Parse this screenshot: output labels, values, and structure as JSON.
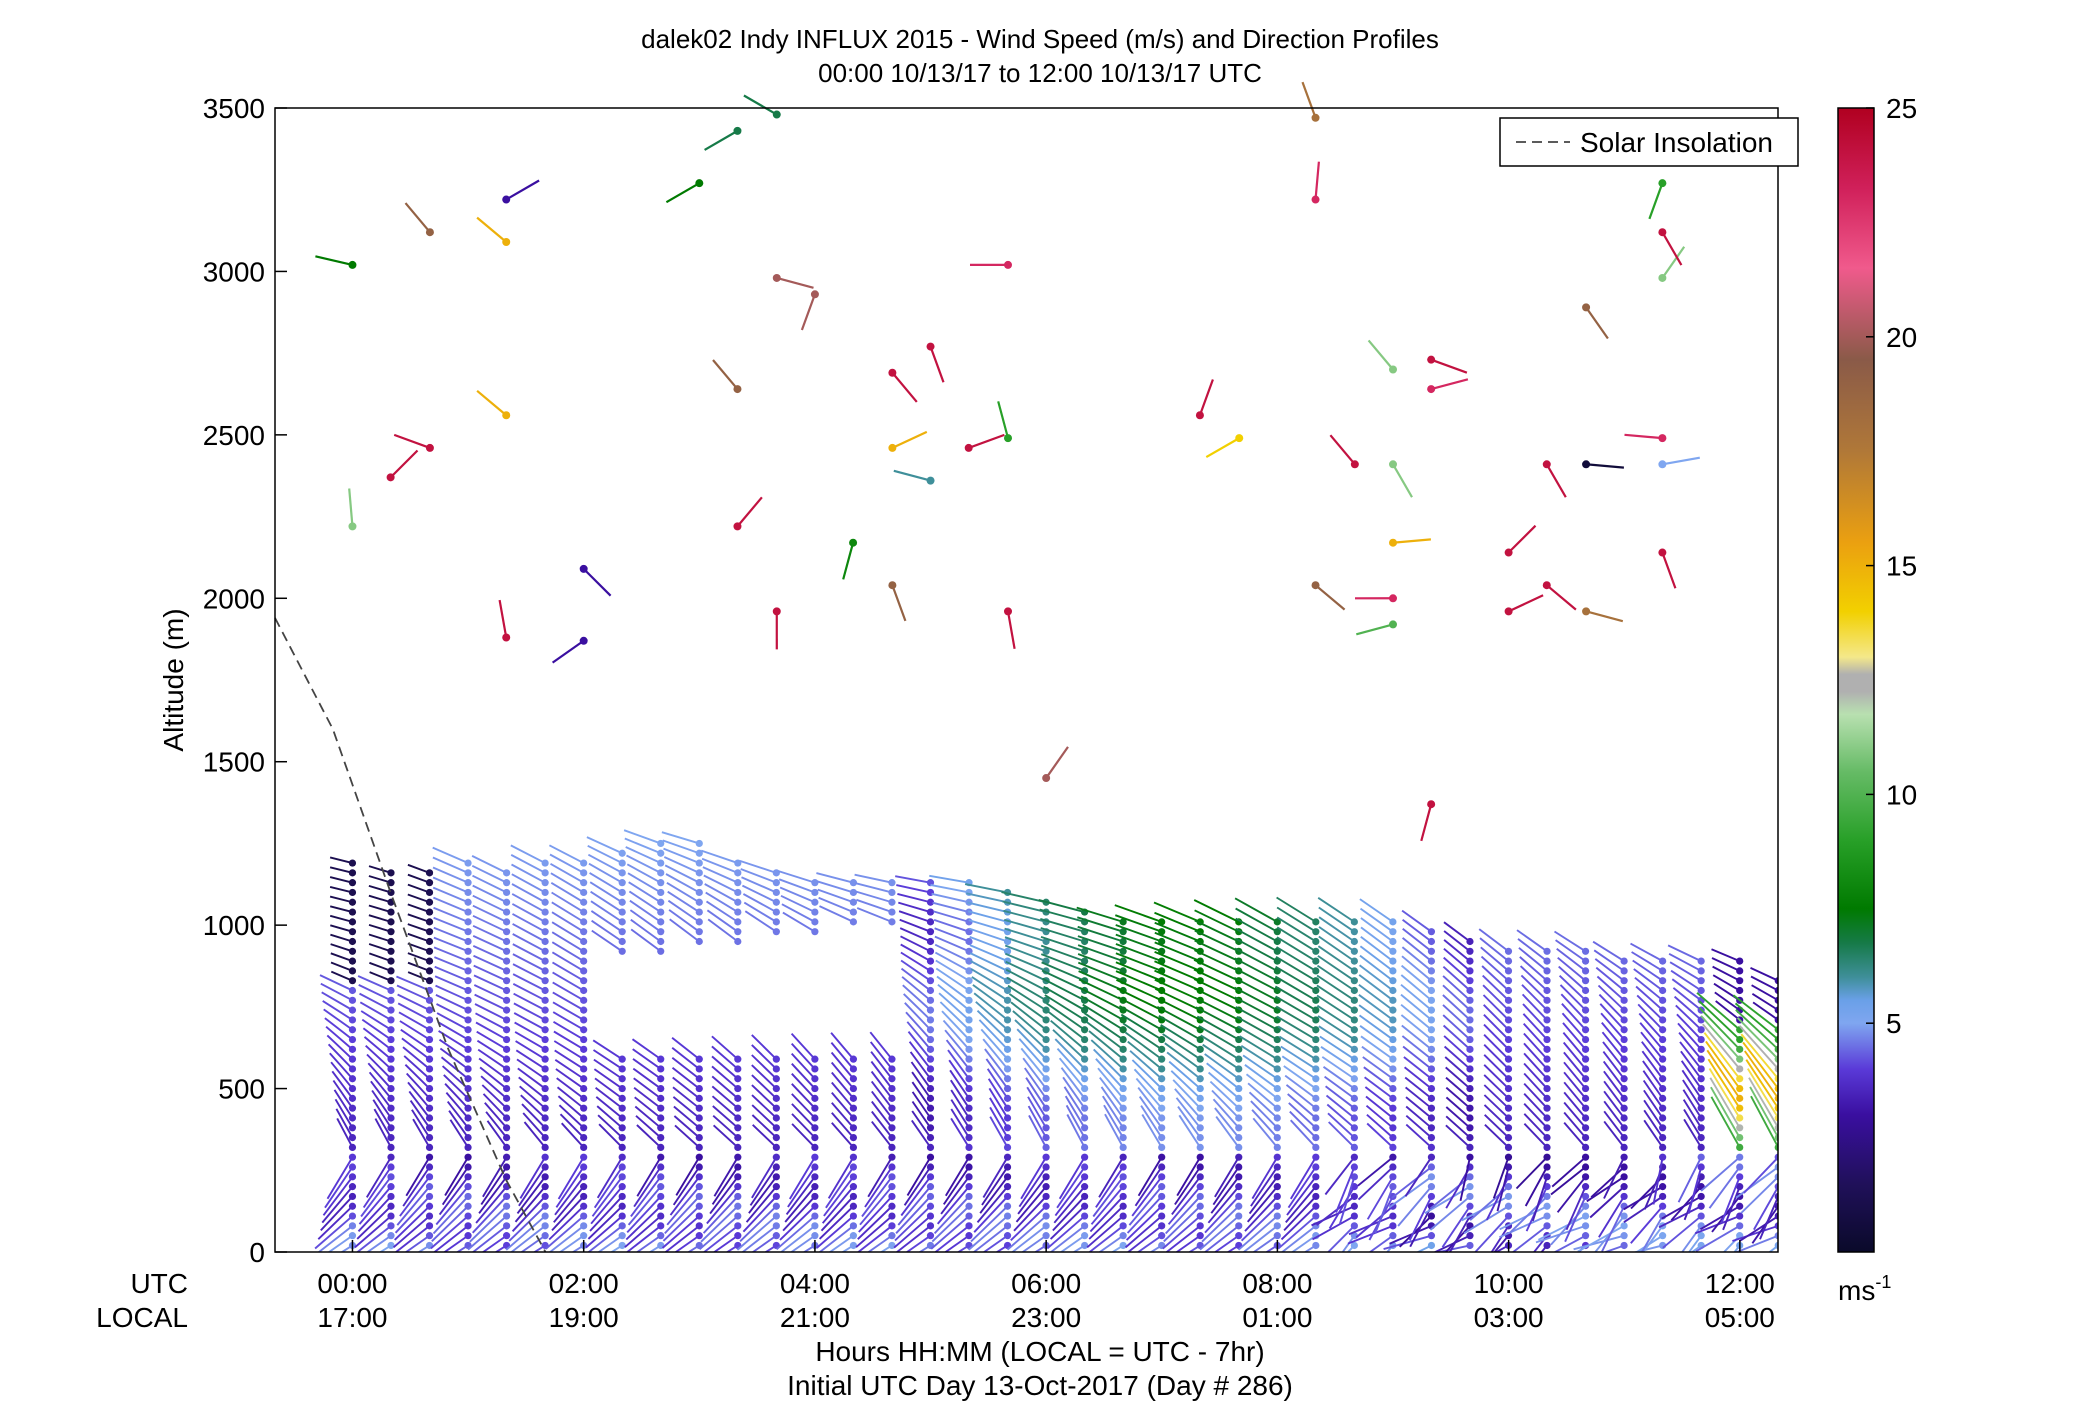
{
  "chart_data": {
    "type": "scatter",
    "title": "dalek02 Indy INFLUX 2015 - Wind Speed (m/s) and Direction Profiles",
    "subtitle": "00:00 10/13/17 to 12:00 10/13/17  UTC",
    "ylabel": "Altitude (m)",
    "xlabel": "Hours HH:MM  (LOCAL = UTC - 7hr)",
    "xlabel2": "Initial UTC Day 13-Oct-2017 (Day # 286)",
    "utc_label": "UTC",
    "local_label": "LOCAL",
    "xlim": [
      -0.67,
      12.33
    ],
    "ylim": [
      0,
      3500
    ],
    "x_ticks": [
      {
        "x": 0,
        "utc": "00:00",
        "local": "17:00"
      },
      {
        "x": 2,
        "utc": "02:00",
        "local": "19:00"
      },
      {
        "x": 4,
        "utc": "04:00",
        "local": "21:00"
      },
      {
        "x": 6,
        "utc": "06:00",
        "local": "23:00"
      },
      {
        "x": 8,
        "utc": "08:00",
        "local": "01:00"
      },
      {
        "x": 10,
        "utc": "10:00",
        "local": "03:00"
      },
      {
        "x": 12,
        "utc": "12:00",
        "local": "05:00"
      }
    ],
    "y_ticks": [
      {
        "value": 0,
        "label": "0"
      },
      {
        "value": 500,
        "label": "500"
      },
      {
        "value": 1000,
        "label": "1000"
      },
      {
        "value": 1500,
        "label": "1500"
      },
      {
        "value": 2000,
        "label": "2000"
      },
      {
        "value": 2500,
        "label": "2500"
      },
      {
        "value": 3000,
        "label": "3000"
      },
      {
        "value": 3500,
        "label": "3500"
      }
    ],
    "legend": {
      "label": "Solar Insolation",
      "position": "top-right"
    },
    "solar_insolation": {
      "x": [
        -0.67,
        -0.17,
        0.33,
        0.83,
        1.33,
        1.67
      ],
      "y": [
        1940,
        1600,
        1100,
        620,
        220,
        0
      ]
    },
    "colorbar": {
      "min": 0,
      "max": 25,
      "ticks": [
        {
          "value": 5,
          "label": "5"
        },
        {
          "value": 10,
          "label": "10"
        },
        {
          "value": 15,
          "label": "15"
        },
        {
          "value": 20,
          "label": "20"
        },
        {
          "value": 25,
          "label": "25"
        }
      ],
      "unit": "ms",
      "unit_exp": "-1"
    },
    "profile_top_heights": [
      1210,
      1170,
      1160,
      1210,
      1180,
      1210,
      1210,
      1220,
      1250,
      1250,
      1200,
      1170,
      1150,
      1150,
      1140,
      1130,
      1130,
      1110,
      1090,
      1050,
      1030,
      1010,
      1010,
      1010,
      1010,
      1010,
      1010,
      1010,
      980,
      950,
      940,
      940,
      920,
      910,
      910,
      910,
      910,
      830
    ],
    "profile_interval_hours": 0.3333,
    "profile_vertical_spacing_m": 30,
    "sample_vectors": [
      {
        "x": 0.0,
        "y": 3020,
        "dir": 283,
        "speed": 7.5
      },
      {
        "x": 0.33,
        "y": 2370,
        "dir": 45,
        "speed": 24
      },
      {
        "x": 0.0,
        "y": 2220,
        "dir": 355,
        "speed": 11
      },
      {
        "x": 0.67,
        "y": 2460,
        "dir": 290,
        "speed": 24
      },
      {
        "x": 0.67,
        "y": 3120,
        "dir": 320,
        "speed": 19
      },
      {
        "x": 1.33,
        "y": 3220,
        "dir": 60,
        "speed": 3
      },
      {
        "x": 1.33,
        "y": 3090,
        "dir": 310,
        "speed": 15
      },
      {
        "x": 1.33,
        "y": 2560,
        "dir": 310,
        "speed": 15
      },
      {
        "x": 1.33,
        "y": 1880,
        "dir": 350,
        "speed": 24
      },
      {
        "x": 2.0,
        "y": 2090,
        "dir": 135,
        "speed": 3
      },
      {
        "x": 2.0,
        "y": 1870,
        "dir": 235,
        "speed": 3
      },
      {
        "x": 3.0,
        "y": 3270,
        "dir": 240,
        "speed": 7.5
      },
      {
        "x": 3.33,
        "y": 3430,
        "dir": 240,
        "speed": 7
      },
      {
        "x": 3.67,
        "y": 3480,
        "dir": 300,
        "speed": 7
      },
      {
        "x": 3.67,
        "y": 2980,
        "dir": 105,
        "speed": 20
      },
      {
        "x": 4.0,
        "y": 2930,
        "dir": 200,
        "speed": 20
      },
      {
        "x": 3.33,
        "y": 2640,
        "dir": 320,
        "speed": 19
      },
      {
        "x": 3.33,
        "y": 2220,
        "dir": 40,
        "speed": 24
      },
      {
        "x": 3.67,
        "y": 1960,
        "dir": 180,
        "speed": 24
      },
      {
        "x": 4.33,
        "y": 2170,
        "dir": 195,
        "speed": 8
      },
      {
        "x": 4.67,
        "y": 2690,
        "dir": 140,
        "speed": 24
      },
      {
        "x": 4.67,
        "y": 2460,
        "dir": 65,
        "speed": 15
      },
      {
        "x": 5.0,
        "y": 2770,
        "dir": 160,
        "speed": 24
      },
      {
        "x": 4.67,
        "y": 2040,
        "dir": 160,
        "speed": 19
      },
      {
        "x": 5.33,
        "y": 2460,
        "dir": 70,
        "speed": 24
      },
      {
        "x": 5.67,
        "y": 2490,
        "dir": 345,
        "speed": 9
      },
      {
        "x": 5.67,
        "y": 3020,
        "dir": 270,
        "speed": 23
      },
      {
        "x": 5.0,
        "y": 2360,
        "dir": 285,
        "speed": 6
      },
      {
        "x": 5.67,
        "y": 1960,
        "dir": 170,
        "speed": 24
      },
      {
        "x": 6.0,
        "y": 1450,
        "dir": 35,
        "speed": 20
      },
      {
        "x": 7.33,
        "y": 2560,
        "dir": 20,
        "speed": 24
      },
      {
        "x": 7.67,
        "y": 2490,
        "dir": 240,
        "speed": 14
      },
      {
        "x": 8.33,
        "y": 3470,
        "dir": 340,
        "speed": 18
      },
      {
        "x": 8.33,
        "y": 3220,
        "dir": 5,
        "speed": 23
      },
      {
        "x": 8.67,
        "y": 2410,
        "dir": 320,
        "speed": 24
      },
      {
        "x": 8.33,
        "y": 2040,
        "dir": 130,
        "speed": 19
      },
      {
        "x": 9.0,
        "y": 2700,
        "dir": 320,
        "speed": 11
      },
      {
        "x": 9.0,
        "y": 2410,
        "dir": 150,
        "speed": 11
      },
      {
        "x": 9.0,
        "y": 2170,
        "dir": 85,
        "speed": 15
      },
      {
        "x": 9.0,
        "y": 2000,
        "dir": 270,
        "speed": 23
      },
      {
        "x": 9.0,
        "y": 1920,
        "dir": 255,
        "speed": 10
      },
      {
        "x": 9.33,
        "y": 2730,
        "dir": 110,
        "speed": 24
      },
      {
        "x": 9.33,
        "y": 2640,
        "dir": 75,
        "speed": 23
      },
      {
        "x": 9.33,
        "y": 1370,
        "dir": 195,
        "speed": 24
      },
      {
        "x": 10.0,
        "y": 2140,
        "dir": 45,
        "speed": 24
      },
      {
        "x": 10.0,
        "y": 1960,
        "dir": 65,
        "speed": 24
      },
      {
        "x": 10.33,
        "y": 2410,
        "dir": 150,
        "speed": 24
      },
      {
        "x": 10.33,
        "y": 2040,
        "dir": 130,
        "speed": 24
      },
      {
        "x": 10.67,
        "y": 2410,
        "dir": 95,
        "speed": 0.5
      },
      {
        "x": 10.67,
        "y": 1960,
        "dir": 105,
        "speed": 18
      },
      {
        "x": 10.67,
        "y": 2890,
        "dir": 145,
        "speed": 19
      },
      {
        "x": 11.33,
        "y": 3270,
        "dir": 200,
        "speed": 9
      },
      {
        "x": 11.33,
        "y": 2980,
        "dir": 35,
        "speed": 11
      },
      {
        "x": 11.33,
        "y": 3120,
        "dir": 150,
        "speed": 24
      },
      {
        "x": 11.33,
        "y": 2490,
        "dir": 275,
        "speed": 23
      },
      {
        "x": 11.33,
        "y": 2410,
        "dir": 80,
        "speed": 5
      },
      {
        "x": 11.33,
        "y": 2140,
        "dir": 160,
        "speed": 24
      }
    ]
  }
}
